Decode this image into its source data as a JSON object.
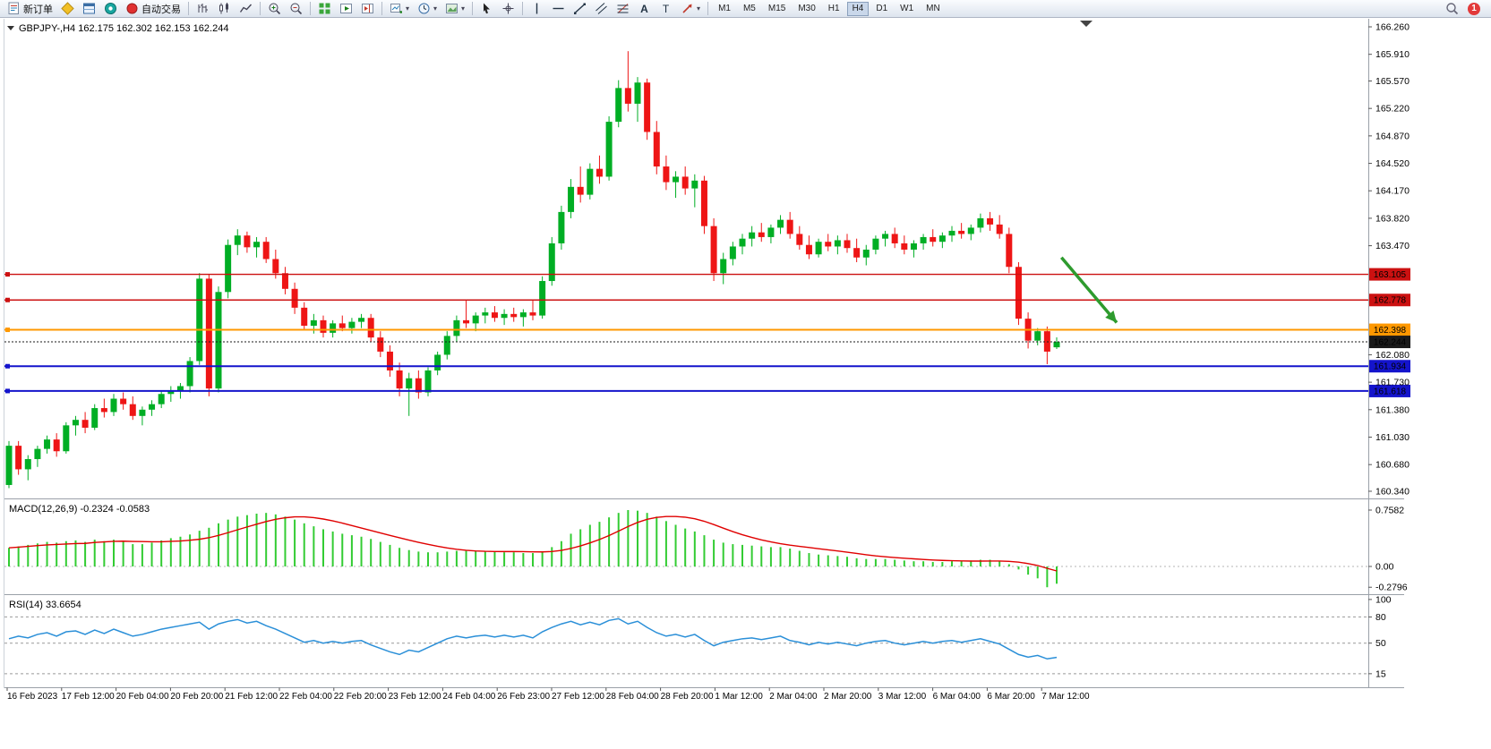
{
  "toolbar": {
    "new_order_label": "新订单",
    "auto_trading_label": "自动交易",
    "timeframes": {
      "items": [
        "M1",
        "M5",
        "M15",
        "M30",
        "H1",
        "H4",
        "D1",
        "W1",
        "MN"
      ],
      "active": "H4"
    },
    "notification_count": "1"
  },
  "chart_data": [
    {
      "type": "candlestick",
      "symbol": "GBPJPY-",
      "timeframe": "H4",
      "title": "GBPJPY-,H4 162.175 162.302 162.153 162.244",
      "current_bar": {
        "open": "162.175",
        "high": "162.302",
        "low": "162.153",
        "close": "162.244"
      },
      "ylim": [
        160.26,
        166.35
      ],
      "y_ticks": [
        "166.260",
        "165.910",
        "165.570",
        "165.220",
        "164.870",
        "164.520",
        "164.170",
        "163.820",
        "163.470",
        "162.080",
        "161.730",
        "161.380",
        "161.030",
        "160.680",
        "160.340"
      ],
      "x_labels": [
        "16 Feb 2023",
        "17 Feb 12:00",
        "20 Feb 04:00",
        "20 Feb 20:00",
        "21 Feb 12:00",
        "22 Feb 04:00",
        "22 Feb 20:00",
        "23 Feb 12:00",
        "24 Feb 04:00",
        "26 Feb 23:00",
        "27 Feb 12:00",
        "28 Feb 04:00",
        "28 Feb 20:00",
        "1 Mar 12:00",
        "2 Mar 04:00",
        "2 Mar 20:00",
        "3 Mar 12:00",
        "6 Mar 04:00",
        "6 Mar 20:00",
        "7 Mar 12:00"
      ],
      "colors": {
        "up": "#00AE24",
        "down": "#EE1515"
      },
      "hlines": [
        {
          "price": "163.105",
          "color": "#CC1111",
          "width": 1.4,
          "style": "solid",
          "handle": true,
          "role": "resistance"
        },
        {
          "price": "162.778",
          "color": "#CC1111",
          "width": 1.4,
          "style": "solid",
          "handle": true,
          "role": "resistance"
        },
        {
          "price": "162.398",
          "color": "#FF9800",
          "width": 2,
          "style": "solid",
          "handle": true,
          "role": "support"
        },
        {
          "price": "162.244",
          "color": "#1a1a1a",
          "width": 1,
          "style": "dotted",
          "handle": false,
          "role": "bid-price"
        },
        {
          "price": "161.934",
          "color": "#1414CC",
          "width": 2,
          "style": "solid",
          "handle": true,
          "role": "support"
        },
        {
          "price": "161.618",
          "color": "#1414CC",
          "width": 2,
          "style": "solid",
          "handle": true,
          "role": "support"
        }
      ],
      "arrow": {
        "color": "#2E9B2E",
        "from": {
          "bar": 110.5,
          "price": 163.32
        },
        "to": {
          "bar": 116.3,
          "price": 162.49
        }
      },
      "candles": [
        [
          160.42,
          160.98,
          160.38,
          160.92
        ],
        [
          160.92,
          160.98,
          160.55,
          160.62
        ],
        [
          160.62,
          160.8,
          160.48,
          160.75
        ],
        [
          160.75,
          160.92,
          160.65,
          160.88
        ],
        [
          160.88,
          161.05,
          160.82,
          161.0
        ],
        [
          161.0,
          161.08,
          160.78,
          160.85
        ],
        [
          160.85,
          161.22,
          160.82,
          161.18
        ],
        [
          161.18,
          161.3,
          161.05,
          161.25
        ],
        [
          161.25,
          161.35,
          161.08,
          161.15
        ],
        [
          161.15,
          161.45,
          161.12,
          161.4
        ],
        [
          161.4,
          161.52,
          161.28,
          161.35
        ],
        [
          161.35,
          161.58,
          161.3,
          161.52
        ],
        [
          161.52,
          161.6,
          161.38,
          161.45
        ],
        [
          161.45,
          161.55,
          161.25,
          161.3
        ],
        [
          161.3,
          161.42,
          161.18,
          161.38
        ],
        [
          161.38,
          161.5,
          161.3,
          161.45
        ],
        [
          161.45,
          161.62,
          161.4,
          161.58
        ],
        [
          161.58,
          161.68,
          161.48,
          161.62
        ],
        [
          161.62,
          161.72,
          161.52,
          161.68
        ],
        [
          161.68,
          162.05,
          161.6,
          162.0
        ],
        [
          162.0,
          163.12,
          161.95,
          163.05
        ],
        [
          163.05,
          163.1,
          161.55,
          161.65
        ],
        [
          161.65,
          162.95,
          161.6,
          162.88
        ],
        [
          162.88,
          163.55,
          162.8,
          163.48
        ],
        [
          163.48,
          163.68,
          163.35,
          163.6
        ],
        [
          163.6,
          163.65,
          163.38,
          163.45
        ],
        [
          163.45,
          163.58,
          163.32,
          163.52
        ],
        [
          163.52,
          163.58,
          163.25,
          163.3
        ],
        [
          163.3,
          163.42,
          163.05,
          163.12
        ],
        [
          163.12,
          163.2,
          162.85,
          162.92
        ],
        [
          162.92,
          163.0,
          162.6,
          162.68
        ],
        [
          162.68,
          162.75,
          162.4,
          162.45
        ],
        [
          162.45,
          162.6,
          162.35,
          162.52
        ],
        [
          162.52,
          162.58,
          162.3,
          162.36
        ],
        [
          162.36,
          162.52,
          162.3,
          162.48
        ],
        [
          162.48,
          162.58,
          162.38,
          162.42
        ],
        [
          162.42,
          162.55,
          162.35,
          162.5
        ],
        [
          162.5,
          162.6,
          162.42,
          162.55
        ],
        [
          162.55,
          162.6,
          162.25,
          162.3
        ],
        [
          162.3,
          162.38,
          162.05,
          162.12
        ],
        [
          162.12,
          162.2,
          161.8,
          161.88
        ],
        [
          161.88,
          161.98,
          161.55,
          161.65
        ],
        [
          161.65,
          161.85,
          161.3,
          161.78
        ],
        [
          161.78,
          161.88,
          161.52,
          161.6
        ],
        [
          161.6,
          161.92,
          161.55,
          161.88
        ],
        [
          161.88,
          162.12,
          161.82,
          162.08
        ],
        [
          162.08,
          162.38,
          162.02,
          162.32
        ],
        [
          162.32,
          162.58,
          162.25,
          162.52
        ],
        [
          162.52,
          162.78,
          162.42,
          162.48
        ],
        [
          162.48,
          162.62,
          162.38,
          162.58
        ],
        [
          162.58,
          162.68,
          162.48,
          162.62
        ],
        [
          162.62,
          162.7,
          162.5,
          162.55
        ],
        [
          162.55,
          162.66,
          162.46,
          162.6
        ],
        [
          162.6,
          162.68,
          162.5,
          162.56
        ],
        [
          162.56,
          162.66,
          162.44,
          162.62
        ],
        [
          162.62,
          162.78,
          162.52,
          162.58
        ],
        [
          162.58,
          163.08,
          162.54,
          163.02
        ],
        [
          163.02,
          163.58,
          162.96,
          163.5
        ],
        [
          163.5,
          163.98,
          163.42,
          163.9
        ],
        [
          163.9,
          164.32,
          163.82,
          164.22
        ],
        [
          164.22,
          164.48,
          164.02,
          164.12
        ],
        [
          164.12,
          164.52,
          164.06,
          164.45
        ],
        [
          164.45,
          164.62,
          164.26,
          164.35
        ],
        [
          164.35,
          165.12,
          164.3,
          165.05
        ],
        [
          165.05,
          165.58,
          164.98,
          165.48
        ],
        [
          165.48,
          165.95,
          165.18,
          165.28
        ],
        [
          165.28,
          165.62,
          165.05,
          165.55
        ],
        [
          165.55,
          165.6,
          164.82,
          164.92
        ],
        [
          164.92,
          165.06,
          164.38,
          164.48
        ],
        [
          164.48,
          164.62,
          164.18,
          164.28
        ],
        [
          164.28,
          164.42,
          164.08,
          164.35
        ],
        [
          164.35,
          164.48,
          164.12,
          164.2
        ],
        [
          164.2,
          164.38,
          163.96,
          164.3
        ],
        [
          164.3,
          164.36,
          163.62,
          163.72
        ],
        [
          163.72,
          163.82,
          163.02,
          163.12
        ],
        [
          163.12,
          163.38,
          162.98,
          163.3
        ],
        [
          163.3,
          163.52,
          163.22,
          163.46
        ],
        [
          163.46,
          163.62,
          163.36,
          163.56
        ],
        [
          163.56,
          163.72,
          163.46,
          163.64
        ],
        [
          163.64,
          163.76,
          163.52,
          163.58
        ],
        [
          163.58,
          163.74,
          163.5,
          163.7
        ],
        [
          163.7,
          163.86,
          163.62,
          163.8
        ],
        [
          163.8,
          163.9,
          163.56,
          163.62
        ],
        [
          163.62,
          163.72,
          163.42,
          163.48
        ],
        [
          163.48,
          163.6,
          163.3,
          163.36
        ],
        [
          163.36,
          163.56,
          163.32,
          163.52
        ],
        [
          163.52,
          163.62,
          163.4,
          163.46
        ],
        [
          163.46,
          163.6,
          163.36,
          163.54
        ],
        [
          163.54,
          163.62,
          163.38,
          163.44
        ],
        [
          163.44,
          163.56,
          163.26,
          163.32
        ],
        [
          163.32,
          163.48,
          163.22,
          163.42
        ],
        [
          163.42,
          163.6,
          163.36,
          163.56
        ],
        [
          163.56,
          163.66,
          163.46,
          163.62
        ],
        [
          163.62,
          163.7,
          163.44,
          163.5
        ],
        [
          163.5,
          163.6,
          163.36,
          163.42
        ],
        [
          163.42,
          163.54,
          163.32,
          163.5
        ],
        [
          163.5,
          163.62,
          163.42,
          163.58
        ],
        [
          163.58,
          163.68,
          163.46,
          163.52
        ],
        [
          163.52,
          163.64,
          163.44,
          163.6
        ],
        [
          163.6,
          163.72,
          163.52,
          163.66
        ],
        [
          163.66,
          163.76,
          163.56,
          163.62
        ],
        [
          163.62,
          163.74,
          163.54,
          163.7
        ],
        [
          163.7,
          163.88,
          163.64,
          163.82
        ],
        [
          163.82,
          163.9,
          163.66,
          163.74
        ],
        [
          163.74,
          163.86,
          163.56,
          163.62
        ],
        [
          163.62,
          163.7,
          163.12,
          163.2
        ],
        [
          163.2,
          163.26,
          162.46,
          162.54
        ],
        [
          162.54,
          162.62,
          162.16,
          162.26
        ],
        [
          162.26,
          162.42,
          162.2,
          162.38
        ],
        [
          162.38,
          162.44,
          161.96,
          162.12
        ],
        [
          162.175,
          162.302,
          162.153,
          162.244
        ]
      ]
    },
    {
      "type": "macd",
      "label": "MACD(12,26,9) -0.2324 -0.0583",
      "params": "12,26,9",
      "value": -0.2324,
      "signal_value": -0.0583,
      "signal_method": "sma9",
      "y_ticks": [
        "0.7582",
        "0.00",
        "-0.2796"
      ],
      "colors": {
        "histogram": "#33CC33",
        "signal": "#E00000"
      },
      "values": [
        0.25,
        0.27,
        0.29,
        0.31,
        0.33,
        0.32,
        0.34,
        0.35,
        0.33,
        0.36,
        0.34,
        0.36,
        0.33,
        0.3,
        0.3,
        0.32,
        0.35,
        0.38,
        0.4,
        0.43,
        0.48,
        0.52,
        0.58,
        0.63,
        0.67,
        0.69,
        0.71,
        0.72,
        0.7,
        0.67,
        0.63,
        0.58,
        0.54,
        0.5,
        0.47,
        0.44,
        0.42,
        0.4,
        0.37,
        0.33,
        0.29,
        0.25,
        0.22,
        0.2,
        0.19,
        0.19,
        0.2,
        0.21,
        0.21,
        0.21,
        0.2,
        0.2,
        0.19,
        0.19,
        0.18,
        0.18,
        0.2,
        0.26,
        0.34,
        0.44,
        0.5,
        0.56,
        0.6,
        0.66,
        0.72,
        0.7582,
        0.75,
        0.72,
        0.67,
        0.61,
        0.56,
        0.51,
        0.47,
        0.42,
        0.36,
        0.32,
        0.3,
        0.29,
        0.28,
        0.27,
        0.26,
        0.26,
        0.24,
        0.21,
        0.18,
        0.16,
        0.15,
        0.14,
        0.13,
        0.11,
        0.1,
        0.1,
        0.1,
        0.09,
        0.08,
        0.07,
        0.07,
        0.06,
        0.06,
        0.07,
        0.07,
        0.08,
        0.09,
        0.09,
        0.07,
        0.03,
        -0.04,
        -0.11,
        -0.16,
        -0.2796,
        -0.2324
      ]
    },
    {
      "type": "rsi",
      "label": "RSI(14) 33.6654",
      "period": 14,
      "value": 33.6654,
      "levels": [
        80,
        50,
        15
      ],
      "y_ticks": [
        "100",
        "80",
        "50",
        "15"
      ],
      "color": "#2A8FD8",
      "values": [
        55,
        58,
        56,
        60,
        62,
        58,
        63,
        64,
        60,
        65,
        61,
        66,
        62,
        58,
        60,
        63,
        66,
        68,
        70,
        72,
        74,
        66,
        72,
        75,
        77,
        73,
        75,
        70,
        66,
        61,
        56,
        51,
        53,
        50,
        52,
        50,
        52,
        53,
        48,
        44,
        40,
        37,
        42,
        40,
        45,
        50,
        55,
        58,
        56,
        58,
        59,
        57,
        59,
        57,
        59,
        56,
        63,
        68,
        72,
        75,
        71,
        74,
        71,
        76,
        78,
        72,
        75,
        68,
        62,
        58,
        60,
        57,
        60,
        53,
        47,
        51,
        53,
        55,
        56,
        54,
        56,
        58,
        53,
        51,
        48,
        51,
        49,
        51,
        49,
        47,
        50,
        52,
        53,
        50,
        48,
        50,
        52,
        50,
        52,
        53,
        51,
        53,
        55,
        52,
        49,
        43,
        37,
        34,
        36,
        32,
        33.6654
      ]
    }
  ]
}
